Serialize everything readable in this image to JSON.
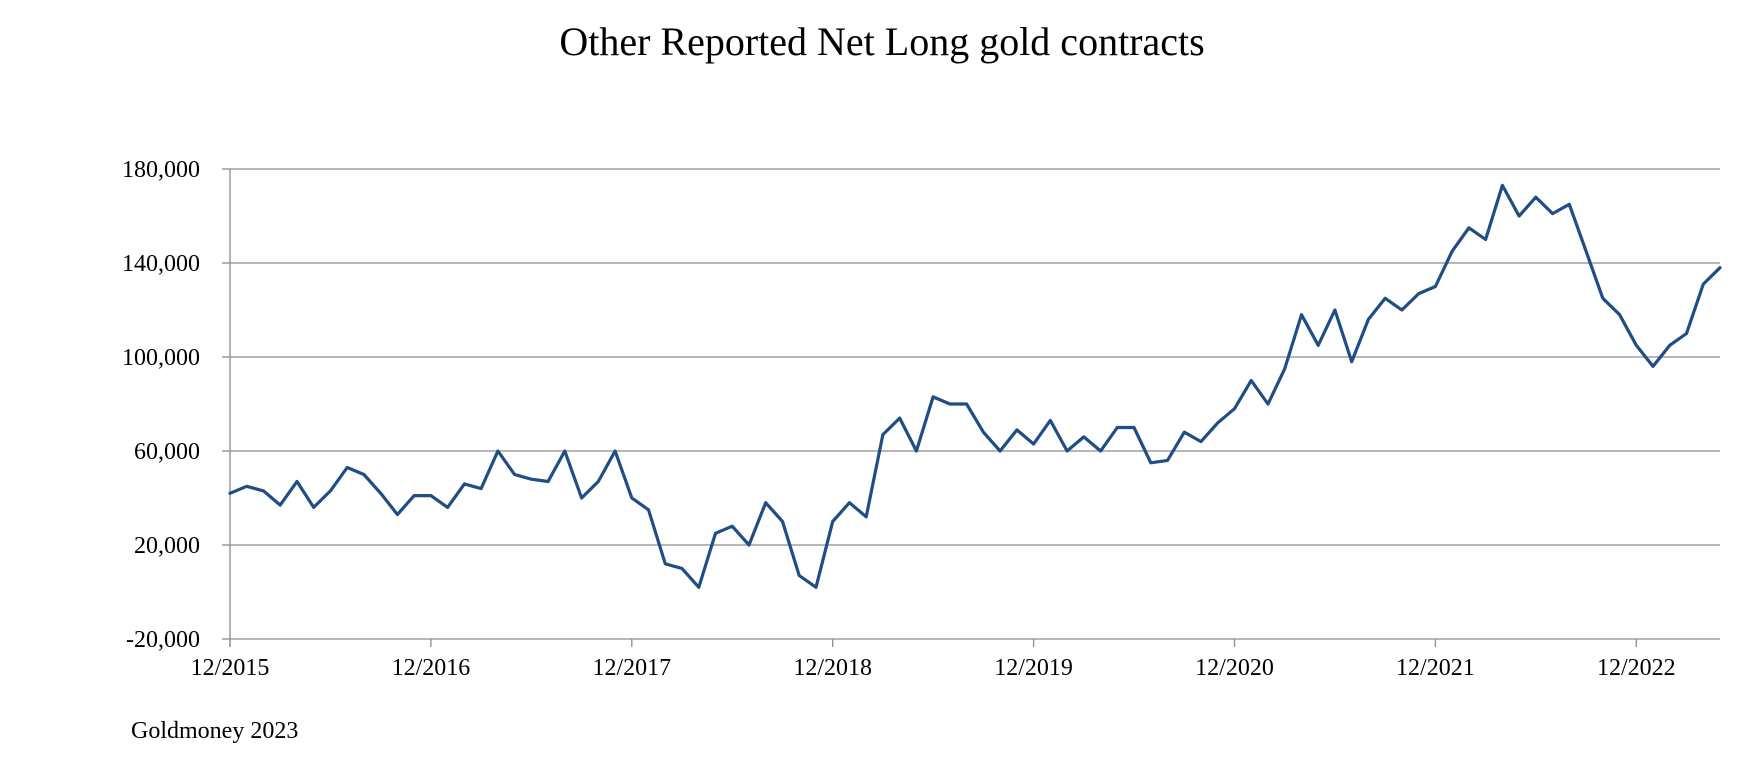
{
  "chart_data": {
    "type": "line",
    "title": "Other Reported Net Long gold contracts",
    "source": "Goldmoney 2023",
    "xlabel": "",
    "ylabel": "",
    "ylim": [
      -20000,
      180000
    ],
    "y_ticks": [
      "-20,000",
      "20,000",
      "60,000",
      "100,000",
      "140,000",
      "180,000"
    ],
    "y_tick_values": [
      -20000,
      20000,
      60000,
      100000,
      140000,
      180000
    ],
    "x_ticks": [
      "12/2015",
      "12/2016",
      "12/2017",
      "12/2018",
      "12/2019",
      "12/2020",
      "12/2021",
      "12/2022"
    ],
    "x_range": [
      "2015-12",
      "2023-05"
    ],
    "grid": true,
    "line_color": "#1f4e85",
    "series": [
      {
        "x": [
          "2015-12",
          "2016-01",
          "2016-02",
          "2016-03",
          "2016-04",
          "2016-05",
          "2016-06",
          "2016-07",
          "2016-08",
          "2016-09",
          "2016-10",
          "2016-11",
          "2016-12",
          "2017-01",
          "2017-02",
          "2017-03",
          "2017-04",
          "2017-05",
          "2017-06",
          "2017-07",
          "2017-08",
          "2017-09",
          "2017-10",
          "2017-11",
          "2017-12",
          "2018-01",
          "2018-02",
          "2018-03",
          "2018-04",
          "2018-05",
          "2018-06",
          "2018-07",
          "2018-08",
          "2018-09",
          "2018-10",
          "2018-11",
          "2018-12",
          "2019-01",
          "2019-02",
          "2019-03",
          "2019-04",
          "2019-05",
          "2019-06",
          "2019-07",
          "2019-08",
          "2019-09",
          "2019-10",
          "2019-11",
          "2019-12",
          "2020-01",
          "2020-02",
          "2020-03",
          "2020-04",
          "2020-05",
          "2020-06",
          "2020-07",
          "2020-08",
          "2020-09",
          "2020-10",
          "2020-11",
          "2020-12",
          "2021-01",
          "2021-02",
          "2021-03",
          "2021-04",
          "2021-05",
          "2021-06",
          "2021-07",
          "2021-08",
          "2021-09",
          "2021-10",
          "2021-11",
          "2021-12",
          "2022-01",
          "2022-02",
          "2022-03",
          "2022-04",
          "2022-05",
          "2022-06",
          "2022-07",
          "2022-08",
          "2022-09",
          "2022-10",
          "2022-11",
          "2022-12",
          "2023-01",
          "2023-02",
          "2023-03",
          "2023-04",
          "2023-05"
        ],
        "values": [
          42000,
          45000,
          43000,
          37000,
          47000,
          36000,
          43000,
          53000,
          50000,
          42000,
          33000,
          41000,
          41000,
          36000,
          46000,
          44000,
          60000,
          50000,
          48000,
          47000,
          60000,
          40000,
          47000,
          60000,
          40000,
          35000,
          12000,
          10000,
          2000,
          25000,
          28000,
          20000,
          38000,
          30000,
          7000,
          2000,
          30000,
          38000,
          32000,
          67000,
          74000,
          60000,
          83000,
          80000,
          80000,
          68000,
          60000,
          69000,
          63000,
          73000,
          60000,
          66000,
          60000,
          70000,
          70000,
          55000,
          56000,
          68000,
          64000,
          72000,
          78000,
          90000,
          80000,
          95000,
          118000,
          105000,
          120000,
          98000,
          116000,
          125000,
          120000,
          127000,
          130000,
          145000,
          155000,
          150000,
          173000,
          160000,
          168000,
          161000,
          165000,
          145000,
          125000,
          118000,
          105000,
          96000,
          105000,
          110000,
          131000,
          138000
        ]
      }
    ]
  }
}
